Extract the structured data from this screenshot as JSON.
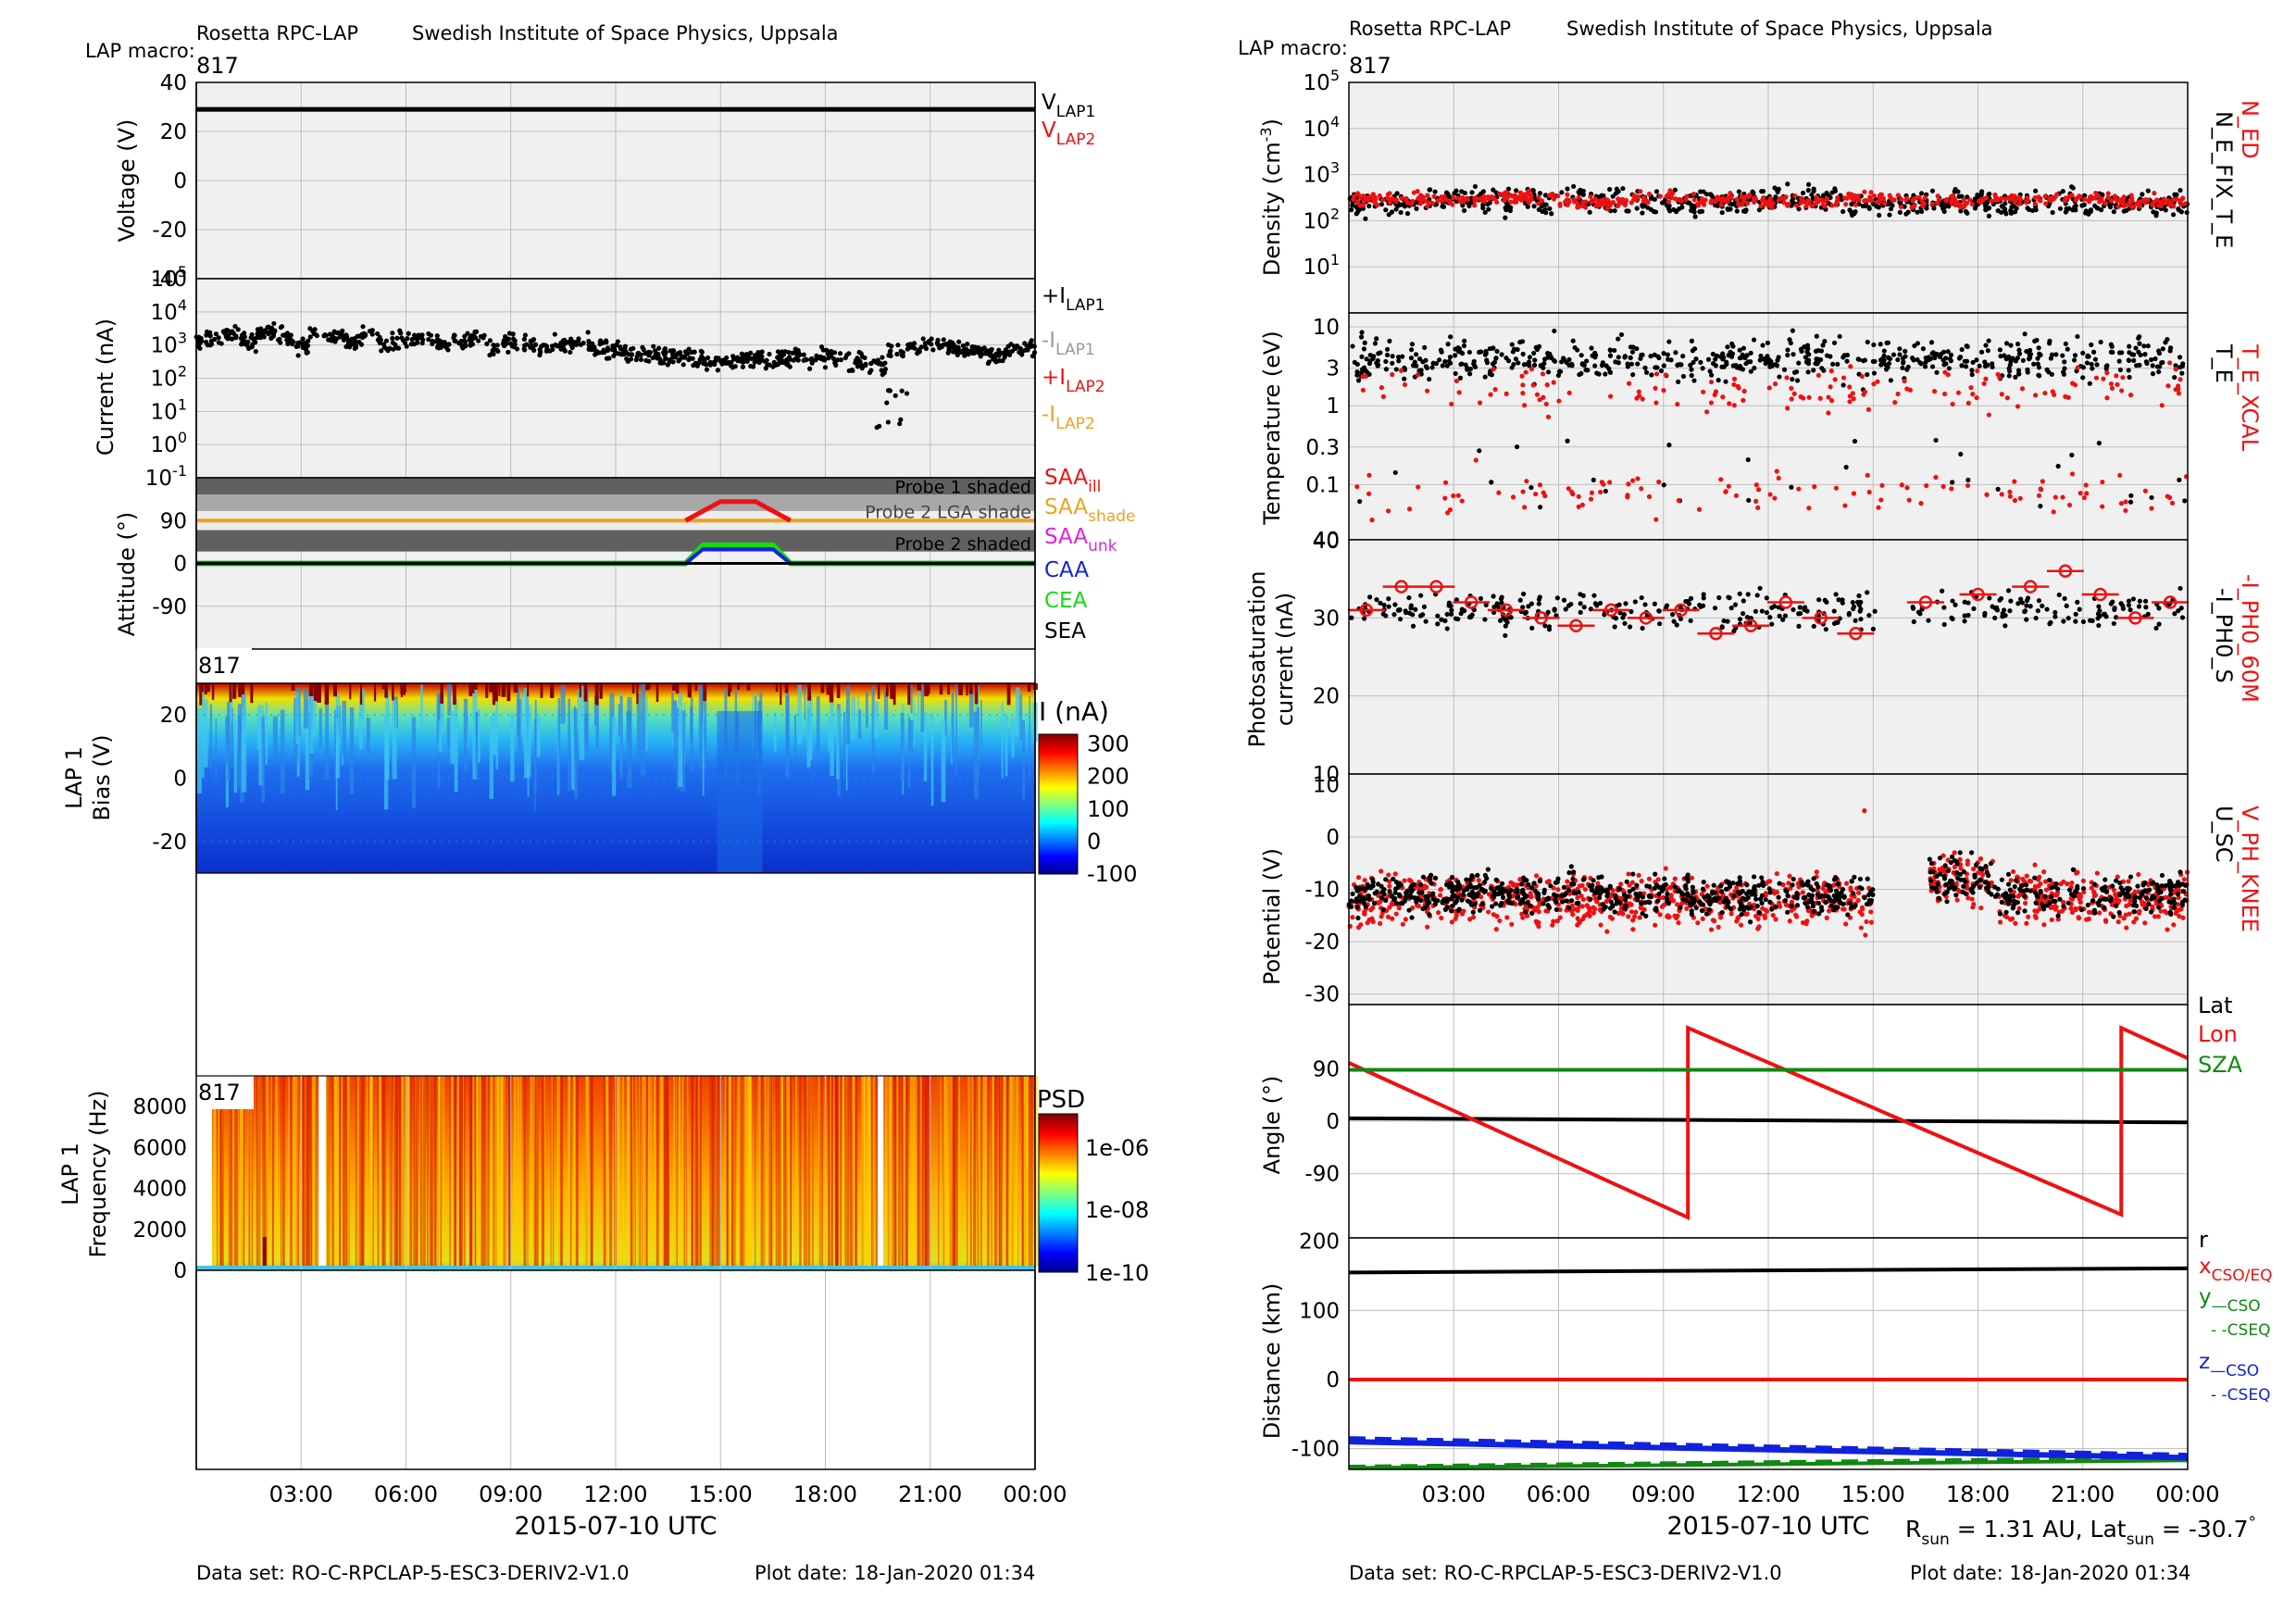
{
  "header": {
    "institute_left": "Rosetta RPC-LAP",
    "org_left": "Swedish Institute of Space Physics, Uppsala",
    "macro_label_left": "LAP macro:",
    "macro_value_left": "817",
    "institute_right": "Rosetta RPC-LAP",
    "org_right": "Swedish Institute of Space Physics, Uppsala",
    "macro_label_right": "LAP macro:",
    "macro_value_right": "817"
  },
  "footer": {
    "dataset_left": "Data set: RO-C-RPCLAP-5-ESC3-DERIV2-V1.0",
    "plotdate_left": "Plot date: 18-Jan-2020 01:34",
    "dataset_right": "Data set: RO-C-RPCLAP-5-ESC3-DERIV2-V1.0",
    "plotdate_right": "Plot date: 18-Jan-2020 01:34",
    "rsun_lat": "R_sun = 1.31 AU, Lat_sun = -30.7°"
  },
  "colors": {
    "black": "#000000",
    "red": "#ee1111",
    "gray": "#999999",
    "orange": "#f0a020",
    "magenta": "#dd22dd",
    "blue": "#1122dd",
    "green": "#11dd11",
    "darkgreen": "#118811",
    "panel_bg": "#f0f0f0",
    "grid": "#bdbdbd"
  },
  "chart_data": [
    {
      "id": "voltage",
      "type": "line",
      "ylabel": "Voltage (V)",
      "ylim": [
        -40,
        40
      ],
      "yticks": [
        "40",
        "20",
        "0",
        "-20",
        "-40"
      ],
      "series": [
        {
          "name": "V_LAP1",
          "color": "black",
          "x": [
            0,
            24
          ],
          "y": [
            29,
            29
          ]
        },
        {
          "name": "V_LAP2",
          "color": "red",
          "x": [],
          "y": []
        }
      ],
      "legend": [
        "V_LAP1",
        "V_LAP2"
      ]
    },
    {
      "id": "current",
      "type": "scatter",
      "ylabel": "Current (nA)",
      "yscale": "log",
      "ylim": [
        0.1,
        100000
      ],
      "yticks": [
        "10^5",
        "10^4",
        "10^3",
        "10^2",
        "10^1",
        "10^0",
        "10^-1"
      ],
      "series": [
        {
          "name": "+I_LAP1",
          "color": "black",
          "x": [
            0.5,
            1.0,
            1.5,
            2.0,
            2.5,
            3.0,
            3.5,
            4.0,
            4.5,
            5.0,
            5.5,
            6.0,
            6.5,
            7.0,
            7.5,
            8.0,
            8.5,
            9.0,
            9.5,
            10.0,
            10.5,
            11.0,
            11.5,
            12.0,
            12.5,
            13.0,
            13.5,
            14.0,
            14.5,
            15.0,
            15.5,
            16.0,
            16.5,
            17.0,
            17.5,
            18.0,
            18.5,
            19.0,
            19.5,
            20.0,
            20.5,
            21.0,
            21.5,
            22.0,
            22.5,
            23.0,
            23.5
          ],
          "y": [
            1500,
            2000,
            1200,
            2500,
            1800,
            900,
            2200,
            1600,
            1300,
            1900,
            1100,
            1400,
            1700,
            1000,
            1200,
            1500,
            800,
            1300,
            1100,
            900,
            1000,
            1200,
            800,
            700,
            600,
            500,
            450,
            400,
            350,
            300,
            350,
            400,
            380,
            420,
            500,
            450,
            400,
            300,
            250,
            600,
            800,
            1000,
            900,
            700,
            600,
            500,
            700
          ]
        }
      ],
      "legend": [
        "+I_LAP1",
        "-I_LAP1",
        "+I_LAP2",
        "-I_LAP2"
      ]
    },
    {
      "id": "attitude",
      "type": "line",
      "ylabel": "Attitude (°)",
      "ylim": [
        -180,
        180
      ],
      "yticks": [
        "90",
        "0",
        "-90"
      ],
      "bands": [
        "Probe 1 shaded",
        "Probe 2 LGA shade",
        "Probe 2 shaded"
      ],
      "series": [
        {
          "name": "SAA_ill",
          "color": "red",
          "x": [
            14.0,
            14.5,
            15.0,
            16.0,
            16.5,
            17.0
          ],
          "y": [
            90,
            110,
            130,
            130,
            110,
            90
          ]
        },
        {
          "name": "SAA_shade",
          "color": "orange",
          "x": [
            0,
            14,
            24
          ],
          "y": [
            90,
            90,
            90
          ]
        },
        {
          "name": "SAA_unk",
          "color": "magenta",
          "x": [],
          "y": []
        },
        {
          "name": "CAA",
          "color": "blue",
          "x": [
            0,
            14.0,
            14.5,
            16.5,
            17.0,
            24
          ],
          "y": [
            0,
            0,
            30,
            30,
            0,
            0
          ]
        },
        {
          "name": "CEA",
          "color": "green",
          "x": [
            0,
            14.0,
            14.5,
            16.5,
            17.0,
            24
          ],
          "y": [
            0,
            0,
            38,
            38,
            0,
            0
          ]
        },
        {
          "name": "SEA",
          "color": "black",
          "x": [
            0,
            24
          ],
          "y": [
            0,
            0
          ]
        }
      ],
      "legend": [
        "SAA_ill",
        "SAA_shade",
        "SAA_unk",
        "CAA",
        "CEA",
        "SEA"
      ]
    },
    {
      "id": "sweep",
      "type": "heatmap",
      "ylabel": "LAP 1 Bias (V)",
      "ylim": [
        -30,
        30
      ],
      "yticks": [
        "20",
        "0",
        "-20"
      ],
      "badge": "817",
      "colorbar_label": "I (nA)",
      "colorbar_ticks": [
        "300",
        "200",
        "100",
        "0",
        "-100"
      ],
      "clim": [
        -100,
        330
      ]
    },
    {
      "id": "psd",
      "type": "heatmap",
      "ylabel": "LAP 1 Frequency (Hz)",
      "ylim": [
        0,
        9500
      ],
      "yticks": [
        "8000",
        "6000",
        "4000",
        "2000",
        "0"
      ],
      "badge": "817",
      "colorbar_label": "PSD",
      "colorbar_ticks": [
        "1e-06",
        "1e-08",
        "1e-10"
      ]
    },
    {
      "id": "density",
      "type": "scatter",
      "ylabel": "Density (cm-3)",
      "yscale": "log",
      "ylim": [
        1,
        100000
      ],
      "yticks": [
        "10^5",
        "10^4",
        "10^3",
        "10^2",
        "10^1"
      ],
      "series": [
        {
          "name": "N_ED",
          "color": "red",
          "x": [
            1,
            3,
            5,
            7,
            9,
            11,
            13,
            15,
            17,
            19,
            21,
            23
          ],
          "y": [
            300,
            280,
            320,
            260,
            300,
            280,
            250,
            300,
            260,
            280,
            300,
            260
          ]
        },
        {
          "name": "N_E_FIX_T_E",
          "color": "black",
          "x": [
            1,
            3,
            5,
            7,
            9,
            11,
            13,
            15,
            17,
            19,
            21,
            23
          ],
          "y": [
            250,
            300,
            260,
            280,
            240,
            260,
            300,
            220,
            250,
            260,
            240,
            230
          ]
        }
      ],
      "legend": [
        "N_ED",
        "N_E_FIX_T_E"
      ]
    },
    {
      "id": "temperature",
      "type": "scatter",
      "ylabel": "Temperature (eV)",
      "yscale": "log",
      "ylim": [
        0.02,
        15
      ],
      "yticks": [
        "10",
        "3",
        "1",
        "0.3",
        "0.1"
      ],
      "series": [
        {
          "name": "T_E_XCAL",
          "color": "red",
          "x": [
            1,
            3,
            5,
            7,
            9,
            11,
            13,
            15,
            17,
            19,
            21,
            23
          ],
          "y": [
            0.05,
            2,
            1.5,
            2.5,
            0.1,
            3,
            2,
            4,
            1,
            0.5,
            2,
            3
          ]
        },
        {
          "name": "T_E",
          "color": "black",
          "x": [
            1,
            3,
            5,
            7,
            9,
            11,
            13,
            15,
            17,
            19,
            21,
            23
          ],
          "y": [
            5,
            4,
            6,
            3,
            5,
            4,
            3,
            4,
            5,
            6,
            4,
            5
          ]
        }
      ],
      "legend": [
        "T_E_XCAL",
        "T_E"
      ]
    },
    {
      "id": "photo",
      "type": "scatter",
      "ylabel": "Photosaturation current (nA)",
      "ylim": [
        10,
        40
      ],
      "yticks": [
        "40",
        "30",
        "20",
        "10"
      ],
      "series": [
        {
          "name": "-I_PH0_60M",
          "color": "red",
          "x": [
            0.5,
            1.5,
            2.5,
            3.5,
            4.5,
            5.5,
            6.5,
            7.5,
            8.5,
            9.5,
            10.5,
            11.5,
            12.5,
            13.5,
            14.5,
            16.5,
            18.0,
            19.5,
            20.5,
            21.5,
            22.5,
            23.5
          ],
          "y": [
            31,
            34,
            34,
            32,
            31,
            30,
            29,
            31,
            30,
            31,
            28,
            29,
            32,
            30,
            28,
            32,
            33,
            34,
            36,
            33,
            30,
            32
          ]
        },
        {
          "name": "-I_PH0_S",
          "color": "black",
          "x": [
            0.5,
            2,
            4,
            6,
            8,
            10,
            12,
            14,
            17,
            19,
            21,
            23
          ],
          "y": [
            30,
            31,
            32,
            29,
            30,
            31,
            29,
            30,
            31,
            33,
            32,
            31
          ]
        }
      ],
      "legend": [
        "-I_PH0_60M",
        "-I_PH0_S"
      ]
    },
    {
      "id": "potential",
      "type": "scatter",
      "ylabel": "Potential (V)",
      "ylim": [
        -32,
        12
      ],
      "yticks": [
        "10",
        "0",
        "-10",
        "-20",
        "-30"
      ],
      "series": [
        {
          "name": "V_PH_KNEE",
          "color": "red",
          "x": [
            1,
            3,
            5,
            7,
            9,
            11,
            13,
            15,
            17,
            19,
            21,
            23
          ],
          "y": [
            -12,
            -14,
            -11,
            -10,
            -12,
            -11,
            -13,
            -10,
            -7,
            -10,
            -11,
            -9
          ]
        },
        {
          "name": "U_SC",
          "color": "black",
          "x": [
            1,
            3,
            5,
            7,
            9,
            11,
            13,
            15,
            17,
            19,
            21,
            23
          ],
          "y": [
            -10,
            -12,
            -10,
            -9,
            -10,
            -9,
            -12,
            -9,
            -8,
            -11,
            -10,
            -9
          ]
        }
      ],
      "legend": [
        "V_PH_KNEE",
        "U_SC"
      ]
    },
    {
      "id": "angle",
      "type": "line",
      "ylabel": "Angle (°)",
      "ylim": [
        -200,
        200
      ],
      "yticks": [
        "90",
        "0",
        "-90"
      ],
      "series": [
        {
          "name": "Lat",
          "color": "black",
          "x": [
            0,
            24
          ],
          "y": [
            5,
            -2
          ]
        },
        {
          "name": "Lon",
          "color": "red",
          "x": [
            0,
            9.7,
            9.7,
            22.1,
            22.1,
            24
          ],
          "y": [
            100,
            -165,
            160,
            -160,
            160,
            108
          ]
        },
        {
          "name": "SZA",
          "color": "darkgreen",
          "x": [
            0,
            24
          ],
          "y": [
            88,
            88
          ]
        }
      ],
      "legend": [
        "Lat",
        "Lon",
        "SZA"
      ]
    },
    {
      "id": "distance",
      "type": "line",
      "ylabel": "Distance (km)",
      "ylim": [
        -130,
        205
      ],
      "yticks": [
        "200",
        "100",
        "0",
        "-100"
      ],
      "xticks": [
        "03:00",
        "06:00",
        "09:00",
        "12:00",
        "15:00",
        "18:00",
        "21:00",
        "00:00"
      ],
      "xlabel": "2015-07-10 UTC",
      "series": [
        {
          "name": "r",
          "color": "black",
          "x": [
            0,
            24
          ],
          "y": [
            155,
            161
          ]
        },
        {
          "name": "x CSO/EQ",
          "color": "red",
          "x": [
            0,
            24
          ],
          "y": [
            0,
            0
          ]
        },
        {
          "name": "y CSO",
          "color": "darkgreen",
          "x": [
            0,
            24
          ],
          "y": [
            -128,
            -117
          ]
        },
        {
          "name": "y CSEQ",
          "color": "darkgreen",
          "x": [
            0,
            24
          ],
          "y": [
            -126,
            -113
          ]
        },
        {
          "name": "z CSO",
          "color": "blue",
          "x": [
            0,
            24
          ],
          "y": [
            -90,
            -113
          ]
        },
        {
          "name": "z CSEQ",
          "color": "blue",
          "x": [
            0,
            24
          ],
          "y": [
            -86,
            -110
          ]
        }
      ]
    }
  ],
  "left_axis": {
    "xticks": [
      "03:00",
      "06:00",
      "09:00",
      "12:00",
      "15:00",
      "18:00",
      "21:00",
      "00:00"
    ],
    "xlabel": "2015-07-10 UTC"
  }
}
